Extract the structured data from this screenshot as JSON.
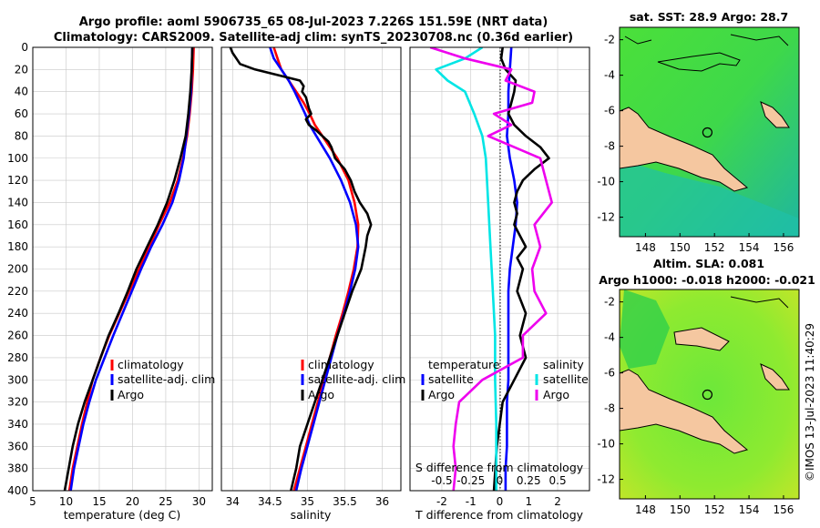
{
  "header": {
    "title_line1": "Argo profile: aoml 5906735_65 08-Jul-2023 7.226S 151.59E (NRT data)",
    "title_line2": "Climatology: CARS2009. Satellite-adj clim: synTS_20230708.nc (0.36d earlier)"
  },
  "colors": {
    "clim": "#ff0000",
    "sat": "#0000ff",
    "argo": "#000000",
    "sat_s": "#00e5e5",
    "argo_s": "#ee00ee",
    "land": "#f5c7a0"
  },
  "chart_data": [
    {
      "id": "temperature",
      "type": "line",
      "xlabel": "temperature (deg C)",
      "xlim": [
        5,
        32
      ],
      "ylim": [
        0,
        400
      ],
      "xticks": [
        "5",
        "10",
        "15",
        "20",
        "25",
        "30"
      ],
      "yticks": [
        "0",
        "20",
        "40",
        "60",
        "80",
        "100",
        "120",
        "140",
        "160",
        "180",
        "200",
        "220",
        "240",
        "260",
        "280",
        "300",
        "320",
        "340",
        "360",
        "380",
        "400"
      ],
      "legend": [
        "climatology",
        "satellite-adj. clim",
        "Argo"
      ],
      "series": [
        {
          "name": "climatology",
          "depth": [
            0,
            20,
            40,
            60,
            80,
            100,
            120,
            140,
            160,
            180,
            200,
            220,
            240,
            260,
            280,
            300,
            320,
            340,
            360,
            380,
            400
          ],
          "values": [
            29.2,
            29.1,
            28.9,
            28.6,
            28.2,
            27.6,
            26.8,
            25.6,
            24.0,
            22.5,
            21.0,
            19.5,
            18.0,
            16.5,
            15.2,
            14.0,
            13.2,
            12.4,
            11.7,
            11.0,
            10.5
          ]
        },
        {
          "name": "satellite-adj. clim",
          "depth": [
            0,
            20,
            40,
            60,
            80,
            100,
            120,
            140,
            160,
            180,
            200,
            220,
            240,
            260,
            280,
            300,
            320,
            340,
            360,
            380,
            400
          ],
          "values": [
            29.0,
            28.9,
            28.8,
            28.5,
            28.1,
            27.7,
            27.0,
            26.0,
            24.5,
            22.8,
            21.3,
            19.9,
            18.5,
            17.1,
            15.8,
            14.5,
            13.5,
            12.6,
            11.9,
            11.2,
            10.7
          ]
        },
        {
          "name": "Argo",
          "depth": [
            0,
            20,
            40,
            60,
            80,
            100,
            120,
            140,
            160,
            180,
            200,
            220,
            240,
            260,
            280,
            300,
            320,
            340,
            360,
            380,
            400
          ],
          "values": [
            29.0,
            28.9,
            28.7,
            28.4,
            28.0,
            27.2,
            26.3,
            25.2,
            23.8,
            22.2,
            20.6,
            19.3,
            17.9,
            16.4,
            15.2,
            14.0,
            12.8,
            11.8,
            11.0,
            10.4,
            9.8
          ]
        }
      ]
    },
    {
      "id": "salinity",
      "type": "line",
      "xlabel": "salinity",
      "xlim": [
        33.85,
        36.25
      ],
      "ylim": [
        0,
        400
      ],
      "xticks": [
        "34",
        "34.5",
        "35",
        "35.5",
        "36"
      ],
      "legend": [
        "climatology",
        "satellite-adj. clim",
        "Argo"
      ],
      "series": [
        {
          "name": "climatology",
          "depth": [
            0,
            10,
            20,
            30,
            40,
            50,
            60,
            70,
            80,
            100,
            120,
            140,
            160,
            180,
            200,
            220,
            240,
            260,
            280,
            300,
            320,
            340,
            360,
            380,
            400
          ],
          "values": [
            34.55,
            34.6,
            34.65,
            34.75,
            34.85,
            34.95,
            35.03,
            35.1,
            35.2,
            35.4,
            35.55,
            35.63,
            35.68,
            35.67,
            35.62,
            35.55,
            35.47,
            35.38,
            35.3,
            35.22,
            35.14,
            35.06,
            34.98,
            34.9,
            34.82
          ]
        },
        {
          "name": "satellite-adj. clim",
          "depth": [
            0,
            10,
            20,
            30,
            40,
            50,
            60,
            70,
            80,
            100,
            120,
            140,
            160,
            180,
            200,
            220,
            240,
            260,
            280,
            300,
            320,
            340,
            360,
            380,
            400
          ],
          "values": [
            34.5,
            34.55,
            34.65,
            34.75,
            34.83,
            34.9,
            34.97,
            35.03,
            35.12,
            35.3,
            35.45,
            35.57,
            35.65,
            35.68,
            35.64,
            35.57,
            35.49,
            35.4,
            35.32,
            35.24,
            35.16,
            35.08,
            35.0,
            34.92,
            34.85
          ]
        },
        {
          "name": "Argo",
          "depth": [
            0,
            5,
            10,
            15,
            20,
            25,
            30,
            35,
            40,
            45,
            50,
            55,
            60,
            65,
            70,
            75,
            80,
            85,
            90,
            100,
            110,
            120,
            130,
            140,
            150,
            160,
            170,
            180,
            200,
            220,
            240,
            260,
            280,
            300,
            320,
            340,
            360,
            380,
            400
          ],
          "values": [
            33.97,
            34.0,
            34.05,
            34.1,
            34.3,
            34.6,
            34.9,
            34.95,
            34.93,
            34.98,
            35.0,
            35.02,
            35.05,
            34.98,
            35.02,
            35.12,
            35.2,
            35.28,
            35.32,
            35.37,
            35.5,
            35.58,
            35.63,
            35.7,
            35.8,
            35.85,
            35.8,
            35.78,
            35.72,
            35.6,
            35.5,
            35.4,
            35.3,
            35.2,
            35.1,
            35.0,
            34.9,
            34.85,
            34.78
          ]
        }
      ]
    },
    {
      "id": "differences",
      "type": "line",
      "xlabel": "T difference from climatology",
      "top_xlabel": "S difference from climatology",
      "xlim": [
        -3.1,
        3.1
      ],
      "ylim": [
        0,
        400
      ],
      "xticks": [
        "-2",
        "-1",
        "0",
        "1",
        "2"
      ],
      "top_xticks": [
        "-0.5",
        "-0.25",
        "0",
        "0.25",
        "0.5"
      ],
      "legend_t_title": "temperature",
      "legend_s_title": "salinity",
      "legend_t": [
        "satellite",
        "Argo"
      ],
      "legend_s": [
        "satellite",
        "Argo"
      ],
      "series": [
        {
          "name": "temperature satellite",
          "depth": [
            0,
            20,
            40,
            60,
            80,
            100,
            120,
            140,
            160,
            180,
            200,
            220,
            240,
            260,
            280,
            300,
            320,
            340,
            360,
            380,
            400
          ],
          "values": [
            0.4,
            0.35,
            0.3,
            0.3,
            0.25,
            0.35,
            0.5,
            0.6,
            0.55,
            0.45,
            0.35,
            0.3,
            0.3,
            0.3,
            0.3,
            0.3,
            0.25,
            0.25,
            0.25,
            0.2,
            0.2
          ]
        },
        {
          "name": "temperature Argo",
          "depth": [
            0,
            10,
            20,
            30,
            40,
            50,
            60,
            70,
            80,
            90,
            100,
            110,
            120,
            130,
            140,
            150,
            160,
            170,
            180,
            190,
            200,
            220,
            240,
            260,
            280,
            300,
            320,
            340,
            360,
            380,
            400
          ],
          "values": [
            0.1,
            0.05,
            0.2,
            0.55,
            0.5,
            0.4,
            0.3,
            0.5,
            0.9,
            1.4,
            1.7,
            1.2,
            0.8,
            0.6,
            0.5,
            0.6,
            0.5,
            0.7,
            0.9,
            0.6,
            0.8,
            0.6,
            0.9,
            0.7,
            0.9,
            0.5,
            0.1,
            0.0,
            -0.1,
            -0.15,
            -0.2
          ]
        },
        {
          "name": "salinity satellite",
          "depth": [
            0,
            10,
            20,
            30,
            40,
            60,
            80,
            100,
            140,
            180,
            220,
            260,
            300,
            340,
            400
          ],
          "values": [
            -0.15,
            -0.3,
            -0.55,
            -0.45,
            -0.3,
            -0.22,
            -0.15,
            -0.12,
            -0.1,
            -0.08,
            -0.06,
            -0.04,
            -0.04,
            -0.03,
            -0.03
          ]
        },
        {
          "name": "salinity Argo",
          "depth": [
            0,
            10,
            20,
            30,
            40,
            50,
            60,
            70,
            80,
            100,
            120,
            140,
            160,
            180,
            200,
            220,
            240,
            260,
            280,
            300,
            320,
            340,
            360,
            380,
            400
          ],
          "values": [
            -0.6,
            -0.3,
            0.1,
            0.05,
            0.3,
            0.28,
            -0.05,
            0.1,
            -0.1,
            0.35,
            0.4,
            0.45,
            0.3,
            0.35,
            0.28,
            0.3,
            0.4,
            0.2,
            0.2,
            -0.15,
            -0.35,
            -0.38,
            -0.4,
            -0.38,
            -0.4
          ]
        }
      ]
    }
  ],
  "maps": {
    "sst": {
      "title": "sat. SST: 28.9 Argo: 28.7",
      "xticks": [
        "148",
        "150",
        "152",
        "154",
        "156"
      ],
      "yticks": [
        "-2",
        "-4",
        "-6",
        "-8",
        "-10",
        "-12"
      ],
      "xlim": [
        146.5,
        156.9
      ],
      "ylim": [
        -13.1,
        -1.3
      ],
      "profile_lon": 151.59,
      "profile_lat": -7.226
    },
    "sla": {
      "title1": "Altim. SLA: 0.081",
      "title2": "Argo h1000: -0.018 h2000: -0.021",
      "xticks": [
        "148",
        "150",
        "152",
        "154",
        "156"
      ],
      "yticks": [
        "-2",
        "-4",
        "-6",
        "-8",
        "-10",
        "-12"
      ],
      "xlim": [
        146.5,
        156.9
      ],
      "ylim": [
        -13.1,
        -1.3
      ],
      "profile_lon": 151.59,
      "profile_lat": -7.226
    }
  },
  "watermark": "©IMOS 13-Jul-2023 11:40:29"
}
